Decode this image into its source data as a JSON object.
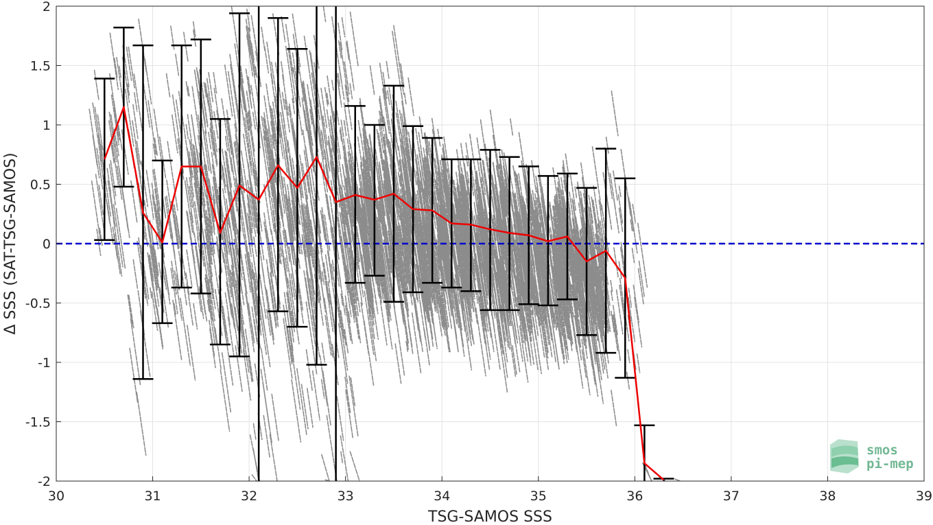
{
  "chart_data": {
    "type": "scatter",
    "title": "",
    "xlabel": "TSG-SAMOS SSS",
    "ylabel": "Δ SSS (SAT-TSG-SAMOS)",
    "xlim": [
      30,
      39
    ],
    "ylim": [
      -2,
      2
    ],
    "x_ticks": [
      30,
      31,
      32,
      33,
      34,
      35,
      36,
      37,
      38,
      39
    ],
    "y_ticks": [
      -2,
      -1.5,
      -1,
      -0.5,
      0,
      0.5,
      1,
      1.5,
      2
    ],
    "grid": true,
    "reference_line": {
      "y": 0,
      "style": "dashed",
      "color": "#0000cc"
    },
    "colors": {
      "scatter": "#8c8c8c",
      "mean_line": "#ee0000",
      "error_bars": "#000000",
      "axes": "#262626",
      "grid": "#e3e3e3"
    },
    "series": [
      {
        "kind": "binned-mean-with-std",
        "x": [
          30.5,
          30.7,
          30.9,
          31.1,
          31.3,
          31.5,
          31.7,
          31.9,
          32.1,
          32.3,
          32.5,
          32.7,
          32.9,
          33.1,
          33.3,
          33.5,
          33.7,
          33.9,
          34.1,
          34.3,
          34.5,
          34.7,
          34.9,
          35.1,
          35.3,
          35.5,
          35.7,
          35.9,
          36.1,
          36.3
        ],
        "mean": [
          0.71,
          1.15,
          0.26,
          0.01,
          0.65,
          0.65,
          0.09,
          0.49,
          0.37,
          0.66,
          0.47,
          0.73,
          0.35,
          0.41,
          0.37,
          0.42,
          0.29,
          0.28,
          0.17,
          0.16,
          0.12,
          0.09,
          0.07,
          0.02,
          0.06,
          -0.15,
          -0.06,
          -0.29,
          -1.85,
          -1.99
        ],
        "lower": [
          0.03,
          0.48,
          -1.14,
          -0.67,
          -0.37,
          -0.42,
          -0.85,
          -0.95,
          -2.0,
          -0.57,
          -0.7,
          -1.02,
          -2.0,
          -0.33,
          -0.27,
          -0.49,
          -0.41,
          -0.33,
          -0.37,
          -0.4,
          -0.56,
          -0.56,
          -0.51,
          -0.52,
          -0.47,
          -0.77,
          -0.92,
          -1.13,
          -2.0,
          -2.0
        ],
        "upper": [
          1.39,
          1.82,
          1.67,
          0.7,
          1.67,
          1.72,
          1.05,
          1.94,
          2.0,
          1.9,
          1.64,
          2.0,
          2.0,
          1.16,
          1.0,
          1.33,
          0.99,
          0.89,
          0.71,
          0.71,
          0.79,
          0.73,
          0.65,
          0.57,
          0.59,
          0.47,
          0.8,
          0.55,
          -1.53,
          -1.98
        ]
      }
    ],
    "scatter_cloud": {
      "description_free": true,
      "x_range": [
        30.5,
        36.3
      ],
      "trend": "negative slope streaks",
      "point_count": 3200
    }
  },
  "logo": {
    "line1": "smos",
    "line2": "pi-mep"
  }
}
